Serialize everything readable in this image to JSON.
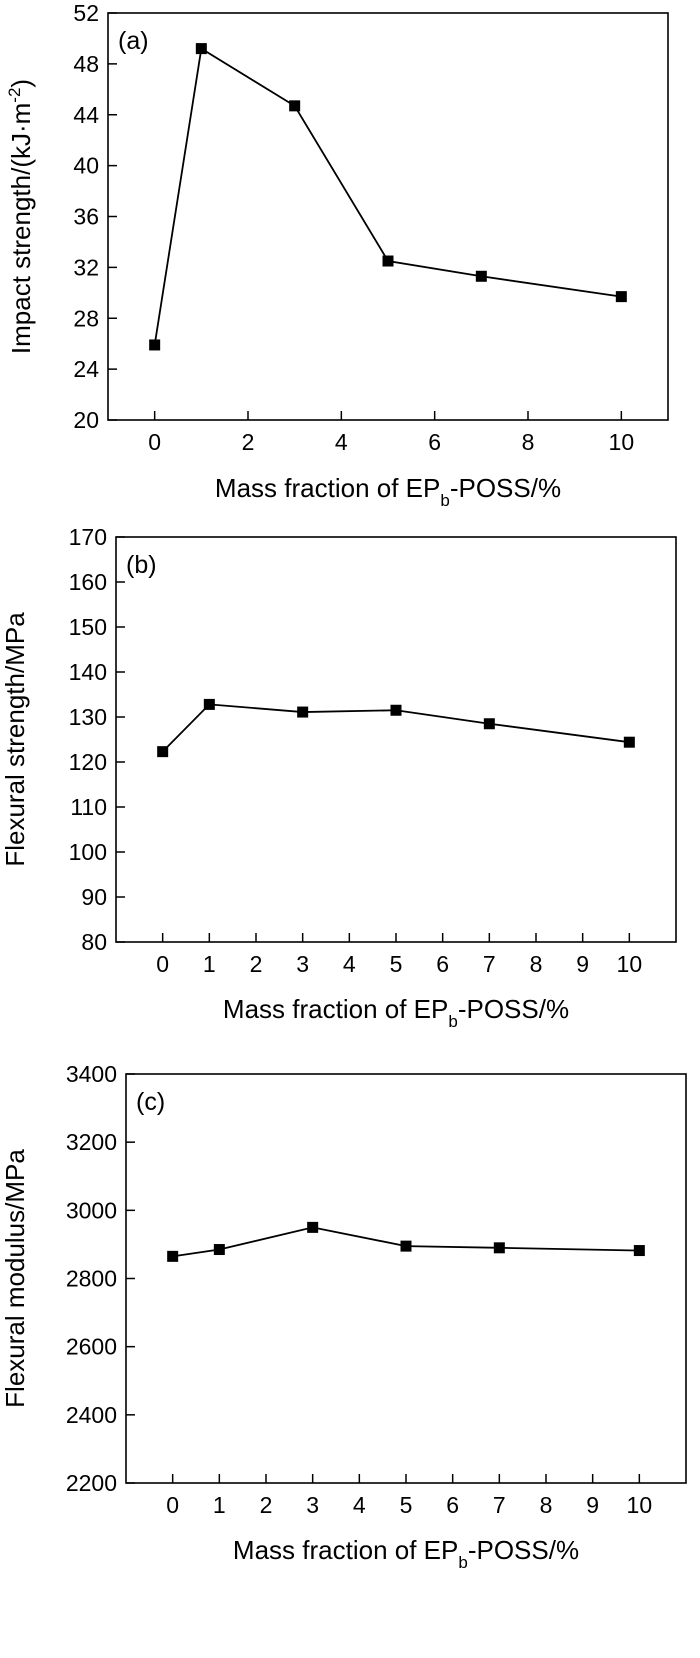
{
  "chart_data": [
    {
      "type": "line",
      "panel_label": "(a)",
      "xlabel": {
        "prefix": "Mass fraction of EP",
        "subscript": "b",
        "suffix": "-POSS/%"
      },
      "ylabel": {
        "text": "Impact strength/(kJ·m",
        "superscript": "-2",
        "close": ")"
      },
      "xlim": [
        -1,
        11
      ],
      "ylim": [
        20,
        52
      ],
      "xticks": [
        0,
        2,
        4,
        6,
        8,
        10
      ],
      "yticks": [
        20,
        24,
        28,
        32,
        36,
        40,
        44,
        48,
        52
      ],
      "x": [
        0,
        1,
        3,
        5,
        7,
        10
      ],
      "y": [
        25.9,
        49.2,
        44.7,
        32.5,
        31.3,
        29.7
      ]
    },
    {
      "type": "line",
      "panel_label": "(b)",
      "xlabel": {
        "prefix": "Mass fraction of EP",
        "subscript": "b",
        "suffix": "-POSS/%"
      },
      "ylabel": {
        "text": "Flexural strength/MPa"
      },
      "xlim": [
        -1,
        11
      ],
      "ylim": [
        80,
        170
      ],
      "xticks": [
        0,
        1,
        2,
        3,
        4,
        5,
        6,
        7,
        8,
        9,
        10
      ],
      "yticks": [
        80,
        90,
        100,
        110,
        120,
        130,
        140,
        150,
        160,
        170
      ],
      "x": [
        0,
        1,
        3,
        5,
        7,
        10
      ],
      "y": [
        122.3,
        132.8,
        131.1,
        131.5,
        128.5,
        124.4
      ]
    },
    {
      "type": "line",
      "panel_label": "(c)",
      "xlabel": {
        "prefix": "Mass fraction of EP",
        "subscript": "b",
        "suffix": "-POSS/%"
      },
      "ylabel": {
        "text": "Flexural modulus/MPa"
      },
      "xlim": [
        -1,
        11
      ],
      "ylim": [
        2200,
        3400
      ],
      "xticks": [
        0,
        1,
        2,
        3,
        4,
        5,
        6,
        7,
        8,
        9,
        10
      ],
      "yticks": [
        2200,
        2400,
        2600,
        2800,
        3000,
        3200,
        3400
      ],
      "x": [
        0,
        1,
        3,
        5,
        7,
        10
      ],
      "y": [
        2865,
        2885,
        2950,
        2895,
        2890,
        2882
      ]
    }
  ]
}
